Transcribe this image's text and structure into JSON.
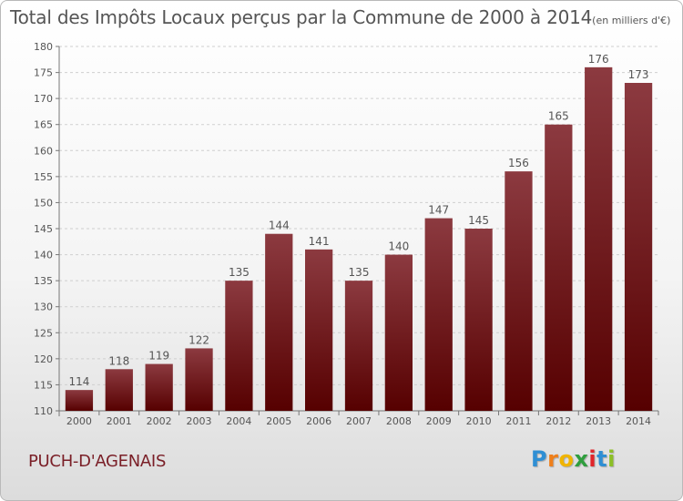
{
  "title": "Total des Impôts Locaux perçus par la Commune de 2000 à 2014",
  "subtitle": "(en milliers d'€)",
  "commune": "PUCH-D'AGENAIS",
  "brand": {
    "letters": [
      "P",
      "r",
      "o",
      "x",
      "i",
      "t",
      "i"
    ],
    "colors": [
      "#2f8fd4",
      "#ef7f1a",
      "#f0b400",
      "#2f9e3e",
      "#e0252a",
      "#2f8fd4",
      "#8cbf26"
    ]
  },
  "colors": {
    "bar_top": "#8c3a40",
    "bar_bottom": "#560000",
    "text": "#555555",
    "commune": "#7a1f27"
  },
  "chart_data": {
    "type": "bar",
    "categories": [
      "2000",
      "2001",
      "2002",
      "2003",
      "2004",
      "2005",
      "2006",
      "2007",
      "2008",
      "2009",
      "2010",
      "2011",
      "2012",
      "2013",
      "2014"
    ],
    "values": [
      114,
      118,
      119,
      122,
      135,
      144,
      141,
      135,
      140,
      147,
      145,
      156,
      165,
      176,
      173
    ],
    "ylim": [
      110,
      180
    ],
    "yticks": [
      110,
      115,
      120,
      125,
      130,
      135,
      140,
      145,
      150,
      155,
      160,
      165,
      170,
      175,
      180
    ],
    "grid": "horizontal-dashed",
    "data_labels": true
  }
}
